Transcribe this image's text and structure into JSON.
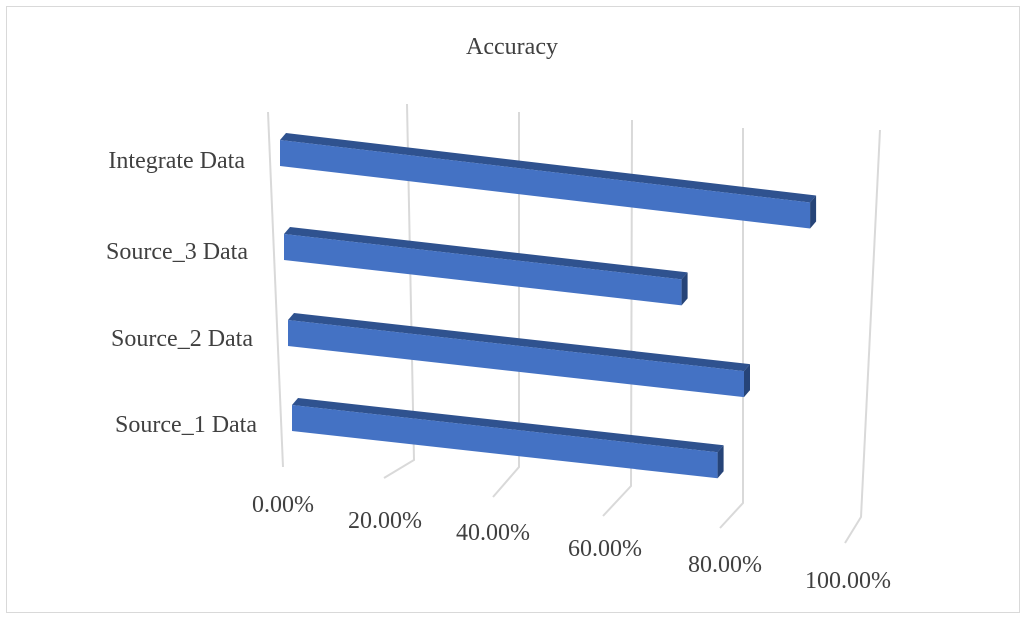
{
  "chart_data": {
    "type": "bar",
    "orientation": "horizontal",
    "style": "3d",
    "title": "Accuracy",
    "categories": [
      "Source_1 Data",
      "Source_2 Data",
      "Source_3 Data",
      "Integrate Data"
    ],
    "series": [
      {
        "values": [
          0.76,
          0.8,
          0.71,
          0.93
        ]
      }
    ],
    "xlim": [
      0,
      1.0
    ],
    "xticks": [
      "0.00%",
      "20.00%",
      "40.00%",
      "60.00%",
      "80.00%",
      "100.00%"
    ],
    "grid": true,
    "legend": "none",
    "colors": {
      "bar_front": "#4472c4",
      "bar_top": "#2f528f",
      "bar_side": "#264478",
      "grid": "#d9d9d9",
      "text": "#404040"
    }
  }
}
